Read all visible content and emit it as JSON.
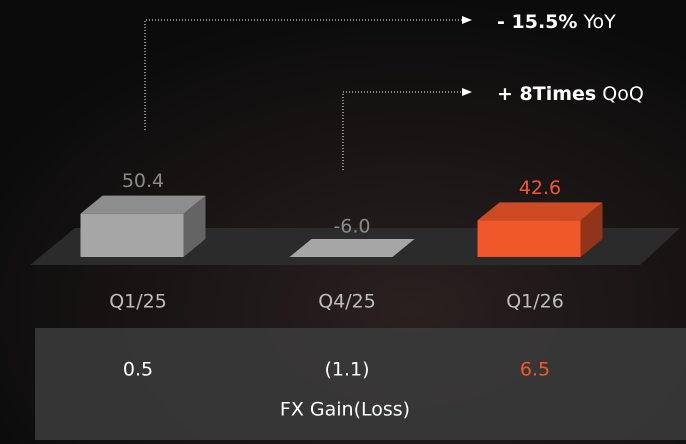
{
  "chart_data": {
    "type": "bar3d",
    "categories": [
      "Q1/25",
      "Q4/25",
      "Q1/26"
    ],
    "values": [
      50.4,
      -6.0,
      42.6
    ],
    "value_labels": [
      "50.4",
      "-6.0",
      "42.6"
    ],
    "colors": [
      "#a6a6a6",
      "#a6a6a6",
      "#f0582a"
    ],
    "annotations": [
      {
        "bold": "- 15.5%",
        "text": "YoY"
      },
      {
        "bold": "+ 8Times",
        "text": "QoQ"
      }
    ],
    "fx": {
      "label": "FX Gain(Loss)",
      "values": [
        0.5,
        -1.1,
        6.5
      ],
      "value_labels": [
        "0.5",
        "(1.1)",
        "6.5"
      ]
    }
  }
}
